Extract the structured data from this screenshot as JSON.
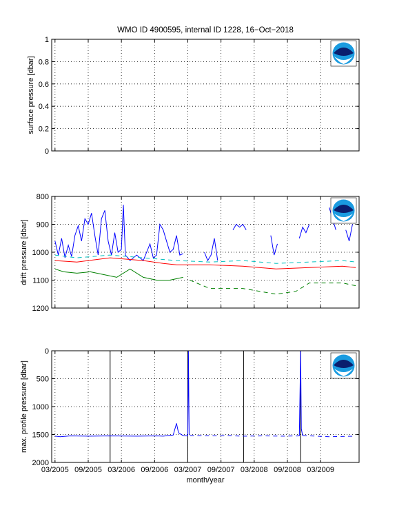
{
  "title": "WMO ID 4900595, internal ID 1228, 16−Oct−2018",
  "xlabel": "month/year",
  "colors": {
    "blue": "#0000ff",
    "red": "#ff0000",
    "cyan": "#00bfbf",
    "green": "#008000",
    "black": "#000000"
  },
  "logo": {
    "text": "NOAA",
    "icon": "noaa-logo-icon"
  },
  "chart_data": [
    {
      "type": "line",
      "ylabel": "surface pressure [dbar]",
      "ylim": [
        0,
        1
      ],
      "yticks": [
        "0",
        "0.2",
        "0.4",
        "0.6",
        "0.8",
        "1"
      ],
      "xticks": [
        "03/2005",
        "09/2005",
        "03/2006",
        "09/2006",
        "03/2007",
        "09/2007",
        "03/2008",
        "09/2008",
        "03/2009"
      ],
      "grid": true,
      "series": []
    },
    {
      "type": "line",
      "ylabel": "drift pressure [dbar]",
      "ylim": [
        800,
        1200
      ],
      "yreversed": true,
      "yticks": [
        "800",
        "900",
        "1000",
        "1100",
        "1200"
      ],
      "xticks": [
        "03/2005",
        "09/2005",
        "03/2006",
        "09/2006",
        "03/2007",
        "09/2007",
        "03/2008",
        "09/2008",
        "03/2009"
      ],
      "grid": true,
      "series": [
        {
          "color": "#0000ff",
          "style": "solid",
          "values": [
            [
              2005.17,
              960
            ],
            [
              2005.22,
              1010
            ],
            [
              2005.27,
              950
            ],
            [
              2005.32,
              1020
            ],
            [
              2005.37,
              975
            ],
            [
              2005.42,
              1015
            ],
            [
              2005.47,
              940
            ],
            [
              2005.52,
              905
            ],
            [
              2005.57,
              960
            ],
            [
              2005.62,
              880
            ],
            [
              2005.67,
              900
            ],
            [
              2005.72,
              860
            ],
            [
              2005.77,
              940
            ],
            [
              2005.82,
              1010
            ],
            [
              2005.87,
              880
            ],
            [
              2005.92,
              850
            ],
            [
              2005.97,
              960
            ],
            [
              2006.02,
              1010
            ],
            [
              2006.07,
              930
            ],
            [
              2006.12,
              1000
            ],
            [
              2006.17,
              990
            ],
            [
              2006.2,
              830
            ],
            [
              2006.23,
              1010
            ],
            [
              2006.3,
              1030
            ],
            [
              2006.4,
              1010
            ],
            [
              2006.5,
              1030
            ],
            [
              2006.55,
              1000
            ],
            [
              2006.6,
              970
            ],
            [
              2006.65,
              1020
            ],
            [
              2006.7,
              1010
            ],
            [
              2006.75,
              900
            ],
            [
              2006.8,
              920
            ],
            [
              2006.85,
              960
            ],
            [
              2006.9,
              1000
            ],
            [
              2006.95,
              990
            ],
            [
              2007.0,
              940
            ],
            [
              2007.05,
              1010
            ],
            [
              2007.1,
              1005
            ]
          ]
        },
        {
          "color": "#0000ff",
          "style": "solid",
          "values": [
            [
              2007.42,
              1000
            ],
            [
              2007.47,
              1030
            ],
            [
              2007.52,
              1010
            ],
            [
              2007.57,
              950
            ],
            [
              2007.62,
              1030
            ]
          ]
        },
        {
          "color": "#0000ff",
          "style": "solid",
          "values": [
            [
              2007.85,
              920
            ],
            [
              2007.9,
              900
            ],
            [
              2007.95,
              910
            ],
            [
              2008.0,
              900
            ],
            [
              2008.05,
              920
            ]
          ]
        },
        {
          "color": "#0000ff",
          "style": "solid",
          "values": [
            [
              2008.42,
              940
            ],
            [
              2008.47,
              1010
            ],
            [
              2008.52,
              970
            ]
          ]
        },
        {
          "color": "#0000ff",
          "style": "solid",
          "values": [
            [
              2008.85,
              950
            ],
            [
              2008.9,
              910
            ],
            [
              2008.95,
              930
            ],
            [
              2009.0,
              900
            ]
          ]
        },
        {
          "color": "#0000ff",
          "style": "solid",
          "values": [
            [
              2009.3,
              840
            ],
            [
              2009.35,
              880
            ],
            [
              2009.4,
              920
            ]
          ]
        },
        {
          "color": "#0000ff",
          "style": "solid",
          "values": [
            [
              2009.55,
              920
            ],
            [
              2009.6,
              960
            ],
            [
              2009.65,
              900
            ]
          ]
        },
        {
          "color": "#00bfbf",
          "style": "dashed",
          "values": [
            [
              2005.17,
              1010
            ],
            [
              2005.5,
              1020
            ],
            [
              2006.0,
              1010
            ],
            [
              2006.5,
              1020
            ],
            [
              2007.0,
              1030
            ],
            [
              2007.5,
              1035
            ],
            [
              2008.0,
              1030
            ],
            [
              2008.5,
              1040
            ],
            [
              2009.0,
              1035
            ],
            [
              2009.5,
              1030
            ],
            [
              2009.7,
              1035
            ]
          ]
        },
        {
          "color": "#ff0000",
          "style": "solid",
          "values": [
            [
              2005.17,
              1030
            ],
            [
              2005.5,
              1035
            ],
            [
              2006.0,
              1020
            ],
            [
              2006.5,
              1030
            ],
            [
              2006.8,
              1040
            ],
            [
              2007.0,
              1045
            ],
            [
              2007.5,
              1045
            ],
            [
              2008.0,
              1050
            ],
            [
              2008.5,
              1060
            ],
            [
              2009.0,
              1055
            ],
            [
              2009.5,
              1050
            ],
            [
              2009.7,
              1055
            ]
          ]
        },
        {
          "color": "#008000",
          "style": "solid",
          "values": [
            [
              2005.17,
              1060
            ],
            [
              2005.3,
              1070
            ],
            [
              2005.5,
              1075
            ],
            [
              2005.7,
              1070
            ],
            [
              2005.9,
              1080
            ],
            [
              2006.1,
              1090
            ],
            [
              2006.3,
              1060
            ],
            [
              2006.5,
              1090
            ],
            [
              2006.7,
              1100
            ],
            [
              2006.9,
              1100
            ],
            [
              2007.1,
              1090
            ]
          ]
        },
        {
          "color": "#008000",
          "style": "dashed",
          "values": [
            [
              2007.2,
              1100
            ],
            [
              2007.5,
              1130
            ],
            [
              2008.0,
              1130
            ],
            [
              2008.5,
              1150
            ],
            [
              2008.8,
              1140
            ],
            [
              2009.0,
              1110
            ],
            [
              2009.5,
              1110
            ],
            [
              2009.7,
              1120
            ]
          ]
        }
      ]
    },
    {
      "type": "line",
      "ylabel": "max. profile pressure [dbar]",
      "ylim": [
        0,
        2000
      ],
      "yreversed": true,
      "yticks": [
        "0",
        "500",
        "1000",
        "1500",
        "2000"
      ],
      "xticks": [
        "03/2005",
        "09/2005",
        "03/2006",
        "09/2006",
        "03/2007",
        "09/2007",
        "03/2008",
        "09/2008",
        "03/2009"
      ],
      "grid": true,
      "vlines": [
        2006.0,
        2007.17,
        2008.01,
        2008.87
      ],
      "series": [
        {
          "color": "#0000ff",
          "style": "solid",
          "values": [
            [
              2005.17,
              1530
            ],
            [
              2005.25,
              1540
            ],
            [
              2005.4,
              1525
            ],
            [
              2005.7,
              1530
            ],
            [
              2006.0,
              1525
            ],
            [
              2006.4,
              1530
            ],
            [
              2006.7,
              1525
            ],
            [
              2006.8,
              1530
            ],
            [
              2006.95,
              1510
            ],
            [
              2007.0,
              1300
            ],
            [
              2007.03,
              1470
            ],
            [
              2007.1,
              1520
            ],
            [
              2007.15,
              1525
            ],
            [
              2007.17,
              1525
            ],
            [
              2007.18,
              0
            ],
            [
              2007.19,
              1500
            ]
          ]
        },
        {
          "color": "#0000ff",
          "style": "dashed",
          "values": [
            [
              2007.2,
              1520
            ],
            [
              2007.6,
              1525
            ],
            [
              2007.8,
              1520
            ],
            [
              2008.0,
              1530
            ],
            [
              2008.3,
              1525
            ],
            [
              2008.6,
              1530
            ],
            [
              2008.85,
              1525
            ]
          ]
        },
        {
          "color": "#0000ff",
          "style": "solid",
          "values": [
            [
              2008.85,
              1525
            ],
            [
              2008.87,
              0
            ],
            [
              2008.88,
              1400
            ],
            [
              2008.9,
              1520
            ]
          ]
        },
        {
          "color": "#0000ff",
          "style": "dashed",
          "values": [
            [
              2008.9,
              1520
            ],
            [
              2009.3,
              1540
            ],
            [
              2009.7,
              1530
            ]
          ]
        }
      ]
    }
  ]
}
